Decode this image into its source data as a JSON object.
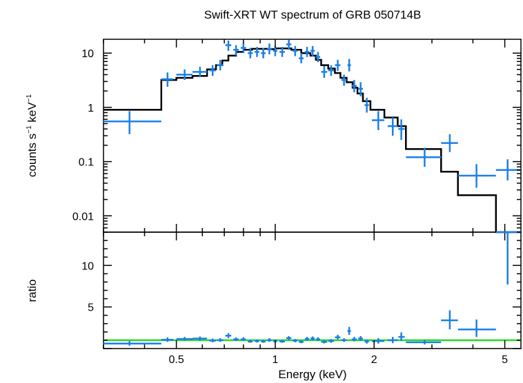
{
  "chart_data": {
    "type": "scatter",
    "title": "Swift-XRT WT spectrum of GRB 050714B",
    "xlabel": "Energy (keV)",
    "x_scale": "log",
    "xlim": [
      0.3,
      5.6
    ],
    "x_ticks": [
      {
        "value": 0.5,
        "label": "0.5"
      },
      {
        "value": 1,
        "label": "1"
      },
      {
        "value": 2,
        "label": "2"
      },
      {
        "value": 5,
        "label": "5"
      }
    ],
    "colors": {
      "data": "#1a7fe8",
      "model": "#000000",
      "unity": "#22dd22"
    },
    "top_panel": {
      "ylabel_main": "counts s",
      "ylabel_sup1": "−1",
      "ylabel_mid": " keV",
      "ylabel_sup2": "−1",
      "y_scale": "log",
      "ylim": [
        0.005,
        18
      ],
      "y_ticks": [
        {
          "value": 10,
          "label": "10"
        },
        {
          "value": 1,
          "label": "1"
        },
        {
          "value": 0.1,
          "label": "0.1"
        },
        {
          "value": 0.01,
          "label": "0.01"
        }
      ],
      "data": [
        {
          "x": 0.36,
          "xlo": 0.3,
          "xhi": 0.45,
          "y": 0.55,
          "ylo": 0.32,
          "yhi": 0.85
        },
        {
          "x": 0.47,
          "xlo": 0.45,
          "xhi": 0.49,
          "y": 3.3,
          "ylo": 2.4,
          "yhi": 4.4
        },
        {
          "x": 0.53,
          "xlo": 0.5,
          "xhi": 0.56,
          "y": 4.0,
          "ylo": 3.2,
          "yhi": 5.0
        },
        {
          "x": 0.59,
          "xlo": 0.56,
          "xhi": 0.62,
          "y": 4.5,
          "ylo": 3.6,
          "yhi": 5.6
        },
        {
          "x": 0.645,
          "xlo": 0.63,
          "xhi": 0.66,
          "y": 4.8,
          "ylo": 3.8,
          "yhi": 6.0
        },
        {
          "x": 0.68,
          "xlo": 0.665,
          "xhi": 0.695,
          "y": 6.0,
          "ylo": 4.8,
          "yhi": 7.5
        },
        {
          "x": 0.72,
          "xlo": 0.705,
          "xhi": 0.735,
          "y": 14.0,
          "ylo": 11.0,
          "yhi": 17.0
        },
        {
          "x": 0.76,
          "xlo": 0.745,
          "xhi": 0.775,
          "y": 11.5,
          "ylo": 9.0,
          "yhi": 14.0
        },
        {
          "x": 0.8,
          "xlo": 0.785,
          "xhi": 0.815,
          "y": 12.5,
          "ylo": 10.0,
          "yhi": 15.5
        },
        {
          "x": 0.84,
          "xlo": 0.825,
          "xhi": 0.855,
          "y": 10.0,
          "ylo": 8.0,
          "yhi": 12.5
        },
        {
          "x": 0.88,
          "xlo": 0.865,
          "xhi": 0.895,
          "y": 10.5,
          "ylo": 8.5,
          "yhi": 13.0
        },
        {
          "x": 0.92,
          "xlo": 0.905,
          "xhi": 0.935,
          "y": 10.0,
          "ylo": 8.0,
          "yhi": 12.5
        },
        {
          "x": 0.96,
          "xlo": 0.945,
          "xhi": 0.975,
          "y": 12.0,
          "ylo": 9.5,
          "yhi": 15.0
        },
        {
          "x": 1.0,
          "xlo": 0.985,
          "xhi": 1.015,
          "y": 11.0,
          "ylo": 8.8,
          "yhi": 13.5
        },
        {
          "x": 1.05,
          "xlo": 1.03,
          "xhi": 1.07,
          "y": 10.5,
          "ylo": 8.5,
          "yhi": 13.0
        },
        {
          "x": 1.1,
          "xlo": 1.08,
          "xhi": 1.12,
          "y": 14.5,
          "ylo": 11.5,
          "yhi": 17.5
        },
        {
          "x": 1.15,
          "xlo": 1.13,
          "xhi": 1.17,
          "y": 11.0,
          "ylo": 8.8,
          "yhi": 13.5
        },
        {
          "x": 1.2,
          "xlo": 1.18,
          "xhi": 1.22,
          "y": 8.0,
          "ylo": 6.5,
          "yhi": 10.0
        },
        {
          "x": 1.25,
          "xlo": 1.23,
          "xhi": 1.27,
          "y": 10.5,
          "ylo": 8.5,
          "yhi": 13.0
        },
        {
          "x": 1.3,
          "xlo": 1.28,
          "xhi": 1.32,
          "y": 11.0,
          "ylo": 8.8,
          "yhi": 13.5
        },
        {
          "x": 1.35,
          "xlo": 1.33,
          "xhi": 1.37,
          "y": 8.5,
          "ylo": 6.8,
          "yhi": 10.5
        },
        {
          "x": 1.41,
          "xlo": 1.38,
          "xhi": 1.44,
          "y": 4.5,
          "ylo": 3.5,
          "yhi": 5.8
        },
        {
          "x": 1.48,
          "xlo": 1.45,
          "xhi": 1.51,
          "y": 4.8,
          "ylo": 3.8,
          "yhi": 6.0
        },
        {
          "x": 1.55,
          "xlo": 1.52,
          "xhi": 1.58,
          "y": 6.0,
          "ylo": 4.7,
          "yhi": 7.5
        },
        {
          "x": 1.62,
          "xlo": 1.59,
          "xhi": 1.65,
          "y": 3.2,
          "ylo": 2.5,
          "yhi": 4.0
        },
        {
          "x": 1.68,
          "xlo": 1.66,
          "xhi": 1.7,
          "y": 6.0,
          "ylo": 4.6,
          "yhi": 7.8
        },
        {
          "x": 1.74,
          "xlo": 1.71,
          "xhi": 1.77,
          "y": 2.5,
          "ylo": 1.9,
          "yhi": 3.2
        },
        {
          "x": 1.82,
          "xlo": 1.79,
          "xhi": 1.85,
          "y": 2.2,
          "ylo": 1.6,
          "yhi": 2.9
        },
        {
          "x": 1.9,
          "xlo": 1.87,
          "xhi": 1.93,
          "y": 1.1,
          "ylo": 0.8,
          "yhi": 1.5
        },
        {
          "x": 2.06,
          "xlo": 1.97,
          "xhi": 2.15,
          "y": 0.58,
          "ylo": 0.38,
          "yhi": 0.85
        },
        {
          "x": 2.28,
          "xlo": 2.2,
          "xhi": 2.36,
          "y": 0.45,
          "ylo": 0.3,
          "yhi": 0.65
        },
        {
          "x": 2.42,
          "xlo": 2.37,
          "xhi": 2.48,
          "y": 0.4,
          "ylo": 0.25,
          "yhi": 0.6
        },
        {
          "x": 2.85,
          "xlo": 2.5,
          "xhi": 3.2,
          "y": 0.12,
          "ylo": 0.08,
          "yhi": 0.18
        },
        {
          "x": 3.4,
          "xlo": 3.2,
          "xhi": 3.6,
          "y": 0.22,
          "ylo": 0.15,
          "yhi": 0.32
        },
        {
          "x": 4.1,
          "xlo": 3.6,
          "xhi": 4.7,
          "y": 0.055,
          "ylo": 0.033,
          "yhi": 0.09
        },
        {
          "x": 5.1,
          "xlo": 4.7,
          "xhi": 5.6,
          "y": 0.07,
          "ylo": 0.045,
          "yhi": 0.11
        }
      ],
      "model_steps": [
        [
          0.3,
          0.9
        ],
        [
          0.45,
          3.2
        ],
        [
          0.5,
          3.5
        ],
        [
          0.56,
          3.8
        ],
        [
          0.62,
          5.0
        ],
        [
          0.66,
          6.0
        ],
        [
          0.69,
          7.3
        ],
        [
          0.72,
          9.0
        ],
        [
          0.76,
          10.5
        ],
        [
          0.8,
          11.5
        ],
        [
          0.85,
          12.0
        ],
        [
          0.9,
          12.0
        ],
        [
          0.95,
          11.8
        ],
        [
          1.0,
          12.2
        ],
        [
          1.05,
          12.2
        ],
        [
          1.12,
          11.5
        ],
        [
          1.2,
          10.0
        ],
        [
          1.28,
          9.0
        ],
        [
          1.33,
          7.5
        ],
        [
          1.38,
          6.0
        ],
        [
          1.45,
          5.2
        ],
        [
          1.52,
          4.3
        ],
        [
          1.58,
          3.5
        ],
        [
          1.65,
          2.9
        ],
        [
          1.72,
          2.3
        ],
        [
          1.78,
          1.8
        ],
        [
          1.85,
          1.3
        ],
        [
          1.95,
          0.9
        ],
        [
          2.15,
          0.65
        ],
        [
          2.36,
          0.45
        ],
        [
          2.5,
          0.17
        ],
        [
          3.2,
          0.065
        ],
        [
          3.6,
          0.024
        ],
        [
          4.7,
          0.004
        ],
        [
          5.6,
          0.004
        ]
      ]
    },
    "bottom_panel": {
      "ylabel": "ratio",
      "ylim": [
        0,
        14
      ],
      "y_ticks": [
        {
          "value": 5,
          "label": "5"
        },
        {
          "value": 10,
          "label": "10"
        }
      ],
      "unity": 1,
      "data": [
        {
          "x": 0.36,
          "xlo": 0.3,
          "xhi": 0.45,
          "y": 0.6,
          "ylo": 0.35,
          "yhi": 0.9
        },
        {
          "x": 0.47,
          "xlo": 0.45,
          "xhi": 0.49,
          "y": 1.05,
          "ylo": 0.8,
          "yhi": 1.35
        },
        {
          "x": 0.53,
          "xlo": 0.5,
          "xhi": 0.56,
          "y": 1.15,
          "ylo": 0.95,
          "yhi": 1.4
        },
        {
          "x": 0.59,
          "xlo": 0.56,
          "xhi": 0.62,
          "y": 1.2,
          "ylo": 0.95,
          "yhi": 1.45
        },
        {
          "x": 0.645,
          "xlo": 0.63,
          "xhi": 0.66,
          "y": 0.95,
          "ylo": 0.75,
          "yhi": 1.2
        },
        {
          "x": 0.68,
          "xlo": 0.665,
          "xhi": 0.695,
          "y": 1.0,
          "ylo": 0.8,
          "yhi": 1.25
        },
        {
          "x": 0.72,
          "xlo": 0.705,
          "xhi": 0.735,
          "y": 1.55,
          "ylo": 1.25,
          "yhi": 1.85
        },
        {
          "x": 0.76,
          "xlo": 0.745,
          "xhi": 0.775,
          "y": 1.1,
          "ylo": 0.9,
          "yhi": 1.35
        },
        {
          "x": 0.8,
          "xlo": 0.785,
          "xhi": 0.815,
          "y": 1.1,
          "ylo": 0.9,
          "yhi": 1.35
        },
        {
          "x": 0.84,
          "xlo": 0.825,
          "xhi": 0.855,
          "y": 0.85,
          "ylo": 0.7,
          "yhi": 1.05
        },
        {
          "x": 0.88,
          "xlo": 0.865,
          "xhi": 0.895,
          "y": 0.9,
          "ylo": 0.72,
          "yhi": 1.1
        },
        {
          "x": 0.92,
          "xlo": 0.905,
          "xhi": 0.935,
          "y": 0.85,
          "ylo": 0.7,
          "yhi": 1.05
        },
        {
          "x": 0.96,
          "xlo": 0.945,
          "xhi": 0.975,
          "y": 1.0,
          "ylo": 0.8,
          "yhi": 1.25
        },
        {
          "x": 1.0,
          "xlo": 0.985,
          "xhi": 1.015,
          "y": 0.9,
          "ylo": 0.72,
          "yhi": 1.1
        },
        {
          "x": 1.05,
          "xlo": 1.03,
          "xhi": 1.07,
          "y": 0.85,
          "ylo": 0.7,
          "yhi": 1.05
        },
        {
          "x": 1.1,
          "xlo": 1.08,
          "xhi": 1.12,
          "y": 1.25,
          "ylo": 1.0,
          "yhi": 1.5
        },
        {
          "x": 1.15,
          "xlo": 1.13,
          "xhi": 1.17,
          "y": 0.95,
          "ylo": 0.75,
          "yhi": 1.15
        },
        {
          "x": 1.2,
          "xlo": 1.18,
          "xhi": 1.22,
          "y": 0.8,
          "ylo": 0.65,
          "yhi": 1.0
        },
        {
          "x": 1.25,
          "xlo": 1.23,
          "xhi": 1.27,
          "y": 1.15,
          "ylo": 0.92,
          "yhi": 1.4
        },
        {
          "x": 1.3,
          "xlo": 1.28,
          "xhi": 1.32,
          "y": 1.2,
          "ylo": 0.98,
          "yhi": 1.45
        },
        {
          "x": 1.35,
          "xlo": 1.33,
          "xhi": 1.37,
          "y": 1.1,
          "ylo": 0.9,
          "yhi": 1.35
        },
        {
          "x": 1.41,
          "xlo": 1.38,
          "xhi": 1.44,
          "y": 0.8,
          "ylo": 0.62,
          "yhi": 1.0
        },
        {
          "x": 1.48,
          "xlo": 1.45,
          "xhi": 1.51,
          "y": 0.9,
          "ylo": 0.7,
          "yhi": 1.15
        },
        {
          "x": 1.55,
          "xlo": 1.52,
          "xhi": 1.58,
          "y": 1.35,
          "ylo": 1.1,
          "yhi": 1.65
        },
        {
          "x": 1.62,
          "xlo": 1.59,
          "xhi": 1.65,
          "y": 1.0,
          "ylo": 0.8,
          "yhi": 1.25
        },
        {
          "x": 1.68,
          "xlo": 1.66,
          "xhi": 1.7,
          "y": 2.1,
          "ylo": 1.65,
          "yhi": 2.6
        },
        {
          "x": 1.74,
          "xlo": 1.71,
          "xhi": 1.77,
          "y": 1.1,
          "ylo": 0.85,
          "yhi": 1.4
        },
        {
          "x": 1.82,
          "xlo": 1.79,
          "xhi": 1.85,
          "y": 1.2,
          "ylo": 0.9,
          "yhi": 1.5
        },
        {
          "x": 1.9,
          "xlo": 1.87,
          "xhi": 1.93,
          "y": 0.85,
          "ylo": 0.6,
          "yhi": 1.1
        },
        {
          "x": 2.06,
          "xlo": 1.97,
          "xhi": 2.15,
          "y": 0.9,
          "ylo": 0.6,
          "yhi": 1.25
        },
        {
          "x": 2.28,
          "xlo": 2.2,
          "xhi": 2.36,
          "y": 1.0,
          "ylo": 0.65,
          "yhi": 1.4
        },
        {
          "x": 2.42,
          "xlo": 2.37,
          "xhi": 2.48,
          "y": 1.4,
          "ylo": 0.9,
          "yhi": 1.95
        },
        {
          "x": 2.85,
          "xlo": 2.5,
          "xhi": 3.2,
          "y": 0.75,
          "ylo": 0.5,
          "yhi": 1.05
        },
        {
          "x": 3.4,
          "xlo": 3.2,
          "xhi": 3.6,
          "y": 3.4,
          "ylo": 2.3,
          "yhi": 4.6
        },
        {
          "x": 4.1,
          "xlo": 3.6,
          "xhi": 4.7,
          "y": 2.3,
          "ylo": 1.4,
          "yhi": 3.5
        },
        {
          "x": 5.1,
          "xlo": 4.7,
          "xhi": 5.6,
          "y": 14.0,
          "ylo": 7.7,
          "yhi": 14.0
        }
      ]
    }
  }
}
